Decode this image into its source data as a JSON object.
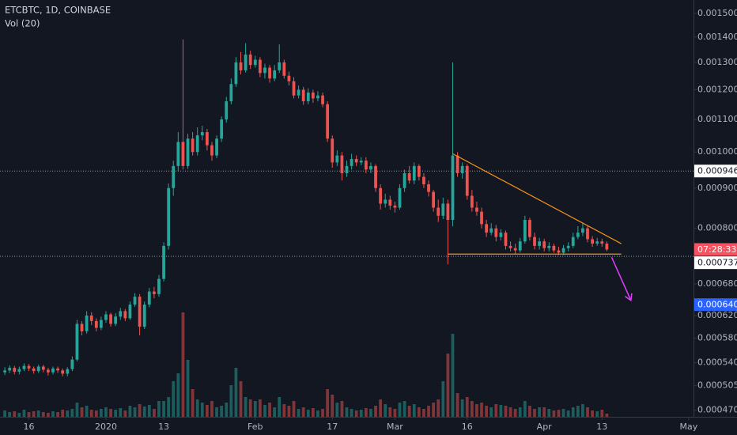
{
  "chart_data": {
    "type": "candlestick",
    "title": "ETCBTC, 1D, COINBASE",
    "volume_title": "Vol (20)",
    "log_scale": true,
    "grid": false,
    "up_color": "#26a69a",
    "down_color": "#ef5350",
    "xlim": [
      "2019-12-10",
      "2020-05-02"
    ],
    "ylim": [
      0.000461,
      0.00156
    ],
    "volume_ylim": [
      0,
      140
    ],
    "yticks": [
      {
        "value": 0.0015,
        "label": "0.001500"
      },
      {
        "value": 0.0014,
        "label": "0.001400"
      },
      {
        "value": 0.0013,
        "label": "0.001300"
      },
      {
        "value": 0.0012,
        "label": "0.001200"
      },
      {
        "value": 0.0011,
        "label": "0.001100"
      },
      {
        "value": 0.001,
        "label": "0.001000"
      },
      {
        "value": 0.0009,
        "label": "0.000900"
      },
      {
        "value": 0.0008,
        "label": "0.000800"
      },
      {
        "value": 0.00068,
        "label": "0.000680"
      },
      {
        "value": 0.00062,
        "label": "0.000620"
      },
      {
        "value": 0.00058,
        "label": "0.000580"
      },
      {
        "value": 0.00054,
        "label": "0.000540"
      },
      {
        "value": 0.000505,
        "label": "0.000505"
      },
      {
        "value": 0.00047,
        "label": "0.000470"
      }
    ],
    "xticks": [
      {
        "value": "2019-12-16",
        "label": "16"
      },
      {
        "value": "2020-01-01",
        "label": "2020"
      },
      {
        "value": "2020-01-13",
        "label": "13"
      },
      {
        "value": "2020-02-01",
        "label": "Feb"
      },
      {
        "value": "2020-02-17",
        "label": "17"
      },
      {
        "value": "2020-03-01",
        "label": "Mar"
      },
      {
        "value": "2020-03-16",
        "label": "16"
      },
      {
        "value": "2020-04-01",
        "label": "Apr"
      },
      {
        "value": "2020-04-13",
        "label": "13"
      },
      {
        "value": "2020-05-01",
        "label": "May"
      }
    ],
    "price_lines": [
      {
        "value": 0.000946,
        "label": "0.000946"
      },
      {
        "value": 0.000737,
        "label": "0.000737"
      }
    ],
    "crosshair_label": {
      "value": 0.00064,
      "label": "0.000640"
    },
    "countdown": "07:28:33",
    "drawings": [
      {
        "color": "#f7931a",
        "points": [
          {
            "x": "2020-03-13",
            "y": 0.000995
          },
          {
            "x": "2020-04-17",
            "y": 0.000765
          }
        ]
      },
      {
        "color": "#f7931a",
        "points": [
          {
            "x": "2020-03-12",
            "y": 0.000742
          },
          {
            "x": "2020-04-17",
            "y": 0.000742
          }
        ]
      }
    ],
    "arrow": {
      "color": "#e040fb",
      "points": [
        {
          "x": "2020-04-15",
          "y": 0.000735
        },
        {
          "x": "2020-04-19",
          "y": 0.000648
        }
      ]
    },
    "x": [
      "2019-12-11",
      "2019-12-12",
      "2019-12-13",
      "2019-12-14",
      "2019-12-15",
      "2019-12-16",
      "2019-12-17",
      "2019-12-18",
      "2019-12-19",
      "2019-12-20",
      "2019-12-21",
      "2019-12-22",
      "2019-12-23",
      "2019-12-24",
      "2019-12-25",
      "2019-12-26",
      "2019-12-27",
      "2019-12-28",
      "2019-12-29",
      "2019-12-30",
      "2019-12-31",
      "2020-01-01",
      "2020-01-02",
      "2020-01-03",
      "2020-01-04",
      "2020-01-05",
      "2020-01-06",
      "2020-01-07",
      "2020-01-08",
      "2020-01-09",
      "2020-01-10",
      "2020-01-11",
      "2020-01-12",
      "2020-01-13",
      "2020-01-14",
      "2020-01-15",
      "2020-01-16",
      "2020-01-17",
      "2020-01-18",
      "2020-01-19",
      "2020-01-20",
      "2020-01-21",
      "2020-01-22",
      "2020-01-23",
      "2020-01-24",
      "2020-01-25",
      "2020-01-26",
      "2020-01-27",
      "2020-01-28",
      "2020-01-29",
      "2020-01-30",
      "2020-01-31",
      "2020-02-01",
      "2020-02-02",
      "2020-02-03",
      "2020-02-04",
      "2020-02-05",
      "2020-02-06",
      "2020-02-07",
      "2020-02-08",
      "2020-02-09",
      "2020-02-10",
      "2020-02-11",
      "2020-02-12",
      "2020-02-13",
      "2020-02-14",
      "2020-02-15",
      "2020-02-16",
      "2020-02-17",
      "2020-02-18",
      "2020-02-19",
      "2020-02-20",
      "2020-02-21",
      "2020-02-22",
      "2020-02-23",
      "2020-02-24",
      "2020-02-25",
      "2020-02-26",
      "2020-02-27",
      "2020-02-28",
      "2020-02-29",
      "2020-03-01",
      "2020-03-02",
      "2020-03-03",
      "2020-03-04",
      "2020-03-05",
      "2020-03-06",
      "2020-03-07",
      "2020-03-08",
      "2020-03-09",
      "2020-03-10",
      "2020-03-11",
      "2020-03-12",
      "2020-03-13",
      "2020-03-14",
      "2020-03-15",
      "2020-03-16",
      "2020-03-17",
      "2020-03-18",
      "2020-03-19",
      "2020-03-20",
      "2020-03-21",
      "2020-03-22",
      "2020-03-23",
      "2020-03-24",
      "2020-03-25",
      "2020-03-26",
      "2020-03-27",
      "2020-03-28",
      "2020-03-29",
      "2020-03-30",
      "2020-03-31",
      "2020-04-01",
      "2020-04-02",
      "2020-04-03",
      "2020-04-04",
      "2020-04-05",
      "2020-04-06",
      "2020-04-07",
      "2020-04-08",
      "2020-04-09",
      "2020-04-10",
      "2020-04-11",
      "2020-04-12",
      "2020-04-13",
      "2020-04-14"
    ],
    "open": [
      0.000525,
      0.000528,
      0.000532,
      0.000526,
      0.00053,
      0.000535,
      0.000531,
      0.000527,
      0.000534,
      0.000529,
      0.000525,
      0.000531,
      0.000528,
      0.000523,
      0.00053,
      0.000545,
      0.000605,
      0.000592,
      0.00062,
      0.00061,
      0.000598,
      0.000612,
      0.000622,
      0.000605,
      0.000618,
      0.000628,
      0.000615,
      0.00064,
      0.000655,
      0.0006,
      0.00064,
      0.000665,
      0.00066,
      0.00069,
      0.00076,
      0.0009,
      0.00096,
      0.00103,
      0.00096,
      0.00104,
      0.001,
      0.00105,
      0.00106,
      0.00102,
      0.00099,
      0.00104,
      0.0011,
      0.00116,
      0.00122,
      0.0013,
      0.00127,
      0.00133,
      0.00129,
      0.00131,
      0.00126,
      0.00128,
      0.00124,
      0.00127,
      0.0013,
      0.00125,
      0.00123,
      0.00118,
      0.0012,
      0.00116,
      0.00119,
      0.00117,
      0.00118,
      0.00115,
      0.00104,
      0.00097,
      0.00099,
      0.00094,
      0.00096,
      0.00098,
      0.00097,
      0.000975,
      0.00095,
      0.00096,
      0.0009,
      0.00086,
      0.00087,
      0.000855,
      0.00085,
      0.0009,
      0.00094,
      0.00092,
      0.00096,
      0.00093,
      0.00091,
      0.00089,
      0.00085,
      0.00083,
      0.00086,
      0.00082,
      0.00099,
      0.00094,
      0.00096,
      0.00088,
      0.00085,
      0.00084,
      0.00081,
      0.00079,
      0.0008,
      0.00078,
      0.00079,
      0.00076,
      0.000755,
      0.00075,
      0.00077,
      0.00082,
      0.00078,
      0.00076,
      0.00077,
      0.000755,
      0.00076,
      0.00075,
      0.000745,
      0.000755,
      0.00076,
      0.00078,
      0.00079,
      0.0008,
      0.000775,
      0.000765,
      0.00077,
      0.000765
    ],
    "high": [
      0.000533,
      0.000536,
      0.000535,
      0.000534,
      0.000539,
      0.000538,
      0.000534,
      0.000537,
      0.000537,
      0.000532,
      0.000534,
      0.000534,
      0.000531,
      0.000533,
      0.00055,
      0.000612,
      0.00061,
      0.000628,
      0.000626,
      0.000615,
      0.000618,
      0.000628,
      0.000625,
      0.000624,
      0.000634,
      0.000632,
      0.000646,
      0.000662,
      0.00066,
      0.000646,
      0.000672,
      0.000674,
      0.000698,
      0.000768,
      0.000912,
      0.000975,
      0.00106,
      0.00139,
      0.001055,
      0.00106,
      0.001075,
      0.00108,
      0.00107,
      0.00103,
      0.00105,
      0.00111,
      0.001175,
      0.00124,
      0.00132,
      0.00134,
      0.001375,
      0.001345,
      0.001325,
      0.00132,
      0.001295,
      0.00129,
      0.00129,
      0.00137,
      0.00131,
      0.001265,
      0.001245,
      0.001215,
      0.00121,
      0.001205,
      0.0012,
      0.001195,
      0.00119,
      0.00116,
      0.00105,
      0.001005,
      0.001,
      0.000975,
      0.000995,
      0.00099,
      0.000985,
      0.000985,
      0.00097,
      0.000965,
      0.00091,
      0.000885,
      0.00088,
      0.000865,
      0.00091,
      0.00095,
      0.00096,
      0.00097,
      0.000965,
      0.00094,
      0.00092,
      0.000895,
      0.00087,
      0.000875,
      0.00087,
      0.0013,
      0.001,
      0.00097,
      0.000965,
      0.000895,
      0.000865,
      0.00085,
      0.00082,
      0.000812,
      0.000808,
      0.000798,
      0.000795,
      0.00077,
      0.000765,
      0.000778,
      0.00083,
      0.000825,
      0.00079,
      0.000778,
      0.000776,
      0.000768,
      0.000765,
      0.000758,
      0.000762,
      0.000768,
      0.00079,
      0.000805,
      0.000812,
      0.000805,
      0.000782,
      0.000778,
      0.000776,
      0.00077
    ],
    "low": [
      0.000521,
      0.000524,
      0.000522,
      0.000522,
      0.000527,
      0.000527,
      0.000523,
      0.000524,
      0.000525,
      0.00052,
      0.000522,
      0.000524,
      0.000519,
      0.000519,
      0.000527,
      0.000542,
      0.000585,
      0.000588,
      0.000603,
      0.000592,
      0.000594,
      0.000607,
      0.0006,
      0.000601,
      0.000612,
      0.00061,
      0.000612,
      0.000636,
      0.000585,
      0.000596,
      0.000635,
      0.000652,
      0.000655,
      0.000685,
      0.000752,
      0.00088,
      0.000945,
      0.00095,
      0.000952,
      0.00099,
      0.00099,
      0.001035,
      0.001005,
      0.000975,
      0.000982,
      0.00103,
      0.00109,
      0.00115,
      0.00121,
      0.001255,
      0.001262,
      0.001275,
      0.00128,
      0.001245,
      0.00124,
      0.001225,
      0.00123,
      0.00126,
      0.00124,
      0.001215,
      0.00117,
      0.00117,
      0.001148,
      0.00115,
      0.001155,
      0.00116,
      0.00114,
      0.00103,
      0.000955,
      0.00096,
      0.00092,
      0.00093,
      0.00095,
      0.00096,
      0.000962,
      0.00094,
      0.00094,
      0.00089,
      0.000845,
      0.00085,
      0.000845,
      0.000838,
      0.000845,
      0.00089,
      0.000912,
      0.00091,
      0.00092,
      0.0009,
      0.000878,
      0.00084,
      0.000815,
      0.000822,
      0.00072,
      0.000805,
      0.00093,
      0.000925,
      0.00087,
      0.00084,
      0.00083,
      0.0008,
      0.00078,
      0.000784,
      0.00077,
      0.000772,
      0.000752,
      0.000748,
      0.000742,
      0.000745,
      0.000765,
      0.000772,
      0.000752,
      0.000752,
      0.000748,
      0.000748,
      0.000745,
      0.00074,
      0.00074,
      0.000748,
      0.000755,
      0.000775,
      0.000782,
      0.000768,
      0.000758,
      0.00076,
      0.000758,
      0.000748
    ],
    "close": [
      0.000528,
      0.000532,
      0.000526,
      0.00053,
      0.000535,
      0.000531,
      0.000527,
      0.000534,
      0.000529,
      0.000525,
      0.000531,
      0.000528,
      0.000523,
      0.00053,
      0.000545,
      0.000605,
      0.000592,
      0.00062,
      0.00061,
      0.000598,
      0.000612,
      0.000622,
      0.000605,
      0.000618,
      0.000628,
      0.000615,
      0.00064,
      0.000655,
      0.0006,
      0.00064,
      0.000665,
      0.00066,
      0.00069,
      0.00076,
      0.0009,
      0.00096,
      0.00103,
      0.00096,
      0.00104,
      0.001,
      0.00105,
      0.00106,
      0.00102,
      0.00099,
      0.00104,
      0.0011,
      0.00116,
      0.00122,
      0.0013,
      0.00127,
      0.00133,
      0.00129,
      0.00131,
      0.00126,
      0.00128,
      0.00124,
      0.00127,
      0.0013,
      0.00125,
      0.00123,
      0.00118,
      0.0012,
      0.00116,
      0.00119,
      0.00117,
      0.00118,
      0.00115,
      0.00104,
      0.00097,
      0.00099,
      0.00094,
      0.00096,
      0.00098,
      0.00097,
      0.000975,
      0.00095,
      0.00096,
      0.0009,
      0.00086,
      0.00087,
      0.000855,
      0.00085,
      0.0009,
      0.00094,
      0.00092,
      0.00096,
      0.00093,
      0.00091,
      0.00089,
      0.00085,
      0.00083,
      0.00086,
      0.00082,
      0.00099,
      0.00094,
      0.00096,
      0.00088,
      0.00085,
      0.00084,
      0.00081,
      0.00079,
      0.0008,
      0.00078,
      0.00079,
      0.00076,
      0.000755,
      0.00075,
      0.00077,
      0.00082,
      0.00078,
      0.00076,
      0.00077,
      0.000755,
      0.00076,
      0.00075,
      0.000745,
      0.000755,
      0.00076,
      0.00078,
      0.00079,
      0.0008,
      0.000775,
      0.000765,
      0.00077,
      0.000765,
      0.000752
    ],
    "volume": [
      8,
      6,
      7,
      5,
      9,
      6,
      7,
      8,
      6,
      5,
      7,
      6,
      9,
      8,
      10,
      18,
      12,
      14,
      9,
      8,
      10,
      12,
      10,
      9,
      11,
      8,
      14,
      12,
      16,
      13,
      15,
      10,
      20,
      20,
      25,
      45,
      55,
      132,
      72,
      35,
      22,
      18,
      15,
      20,
      12,
      14,
      18,
      40,
      62,
      45,
      25,
      22,
      20,
      22,
      15,
      18,
      12,
      25,
      16,
      14,
      20,
      10,
      12,
      9,
      11,
      8,
      10,
      35,
      28,
      18,
      20,
      12,
      10,
      8,
      9,
      11,
      10,
      14,
      22,
      16,
      12,
      10,
      18,
      20,
      14,
      16,
      12,
      10,
      14,
      18,
      22,
      45,
      80,
      105,
      30,
      22,
      25,
      20,
      16,
      18,
      14,
      12,
      16,
      15,
      14,
      12,
      10,
      12,
      20,
      14,
      10,
      12,
      12,
      10,
      8,
      9,
      10,
      8,
      12,
      14,
      16,
      12,
      8,
      7,
      9,
      4
    ]
  }
}
